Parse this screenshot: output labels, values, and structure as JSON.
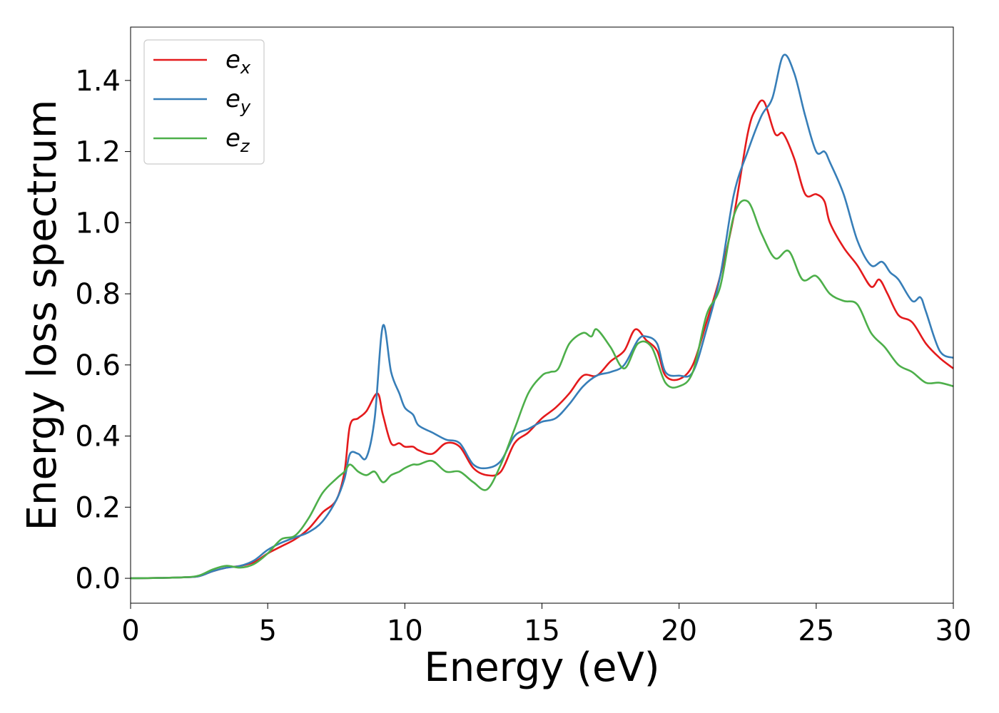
{
  "chart_data": {
    "type": "line",
    "title": "",
    "xlabel": "Energy (eV)",
    "ylabel": "Energy loss spectrum",
    "xlim": [
      0,
      30
    ],
    "ylim": [
      -0.07,
      1.55
    ],
    "xticks": [
      0,
      5,
      10,
      15,
      20,
      25,
      30
    ],
    "xtick_labels": [
      "0",
      "5",
      "10",
      "15",
      "20",
      "25",
      "30"
    ],
    "yticks": [
      0.0,
      0.2,
      0.4,
      0.6,
      0.8,
      1.0,
      1.2,
      1.4
    ],
    "ytick_labels": [
      "0.0",
      "0.2",
      "0.4",
      "0.6",
      "0.8",
      "1.0",
      "1.2",
      "1.4"
    ],
    "grid": false,
    "legend_position": "upper-left",
    "series": [
      {
        "name": "e_x",
        "legend_base": "e",
        "legend_sub": "x",
        "color": "#e41a1c",
        "x": [
          0,
          1,
          2,
          2.5,
          3,
          3.5,
          4,
          4.5,
          5,
          5.5,
          6,
          6.5,
          7,
          7.5,
          7.8,
          8,
          8.3,
          8.6,
          9,
          9.2,
          9.5,
          9.8,
          10,
          10.3,
          10.5,
          11,
          11.5,
          12,
          12.5,
          13,
          13.5,
          14,
          14.5,
          15,
          15.5,
          16,
          16.5,
          17,
          17.5,
          18,
          18.4,
          18.8,
          19.2,
          19.5,
          20,
          20.5,
          21,
          21.5,
          22,
          22.5,
          22.8,
          23.1,
          23.5,
          23.8,
          24.2,
          24.6,
          25,
          25.3,
          25.5,
          26,
          26.5,
          27,
          27.3,
          27.6,
          28,
          28.5,
          29,
          29.5,
          30
        ],
        "y": [
          0,
          0.001,
          0.003,
          0.006,
          0.02,
          0.03,
          0.035,
          0.045,
          0.07,
          0.09,
          0.11,
          0.14,
          0.185,
          0.22,
          0.3,
          0.43,
          0.45,
          0.47,
          0.52,
          0.46,
          0.38,
          0.38,
          0.37,
          0.37,
          0.36,
          0.35,
          0.38,
          0.37,
          0.31,
          0.29,
          0.3,
          0.38,
          0.41,
          0.45,
          0.48,
          0.52,
          0.57,
          0.57,
          0.61,
          0.64,
          0.7,
          0.67,
          0.64,
          0.57,
          0.56,
          0.6,
          0.72,
          0.85,
          1.02,
          1.25,
          1.32,
          1.34,
          1.25,
          1.25,
          1.18,
          1.08,
          1.08,
          1.06,
          1.0,
          0.93,
          0.88,
          0.82,
          0.84,
          0.8,
          0.74,
          0.72,
          0.66,
          0.62,
          0.59
        ]
      },
      {
        "name": "e_y",
        "legend_base": "e",
        "legend_sub": "y",
        "color": "#377eb8",
        "x": [
          0,
          1,
          2,
          2.5,
          3,
          3.5,
          4,
          4.5,
          5,
          5.5,
          6,
          6.5,
          7,
          7.5,
          7.8,
          8,
          8.3,
          8.6,
          8.9,
          9.2,
          9.5,
          9.8,
          10,
          10.3,
          10.5,
          11,
          11.5,
          12,
          12.5,
          13,
          13.5,
          14,
          14.5,
          15,
          15.5,
          16,
          16.5,
          17,
          17.5,
          18,
          18.5,
          18.8,
          19.2,
          19.5,
          20,
          20.5,
          21,
          21.5,
          22,
          22.5,
          23,
          23.4,
          23.8,
          24.2,
          24.6,
          25,
          25.3,
          25.5,
          26,
          26.5,
          27,
          27.4,
          27.7,
          28,
          28.5,
          28.8,
          29,
          29.5,
          30
        ],
        "y": [
          0,
          0.001,
          0.003,
          0.006,
          0.02,
          0.03,
          0.035,
          0.05,
          0.08,
          0.1,
          0.115,
          0.13,
          0.16,
          0.22,
          0.28,
          0.35,
          0.35,
          0.34,
          0.45,
          0.71,
          0.58,
          0.52,
          0.48,
          0.46,
          0.43,
          0.41,
          0.39,
          0.38,
          0.32,
          0.31,
          0.33,
          0.4,
          0.42,
          0.44,
          0.45,
          0.49,
          0.54,
          0.57,
          0.58,
          0.6,
          0.67,
          0.68,
          0.66,
          0.58,
          0.57,
          0.58,
          0.7,
          0.85,
          1.08,
          1.2,
          1.3,
          1.35,
          1.47,
          1.42,
          1.3,
          1.2,
          1.2,
          1.17,
          1.08,
          0.95,
          0.88,
          0.89,
          0.86,
          0.84,
          0.78,
          0.79,
          0.75,
          0.64,
          0.62
        ]
      },
      {
        "name": "e_z",
        "legend_base": "e",
        "legend_sub": "z",
        "color": "#4daf4a",
        "x": [
          0,
          1,
          2,
          2.5,
          3,
          3.5,
          4,
          4.5,
          5,
          5.5,
          6,
          6.5,
          7,
          7.5,
          7.8,
          8,
          8.3,
          8.6,
          8.9,
          9.2,
          9.5,
          9.8,
          10,
          10.3,
          10.5,
          11,
          11.5,
          12,
          12.5,
          13,
          13.5,
          14,
          14.5,
          15,
          15.3,
          15.6,
          16,
          16.5,
          16.8,
          17,
          17.5,
          18,
          18.5,
          19,
          19.5,
          20,
          20.5,
          21,
          21.5,
          22,
          22.5,
          23,
          23.5,
          24,
          24.5,
          25,
          25.5,
          26,
          26.5,
          27,
          27.5,
          28,
          28.5,
          29,
          29.5,
          30
        ],
        "y": [
          0,
          0.001,
          0.003,
          0.008,
          0.025,
          0.035,
          0.03,
          0.04,
          0.07,
          0.11,
          0.12,
          0.17,
          0.24,
          0.28,
          0.3,
          0.32,
          0.3,
          0.29,
          0.3,
          0.27,
          0.29,
          0.3,
          0.31,
          0.32,
          0.32,
          0.33,
          0.3,
          0.3,
          0.27,
          0.25,
          0.32,
          0.42,
          0.52,
          0.57,
          0.58,
          0.59,
          0.66,
          0.69,
          0.68,
          0.7,
          0.65,
          0.59,
          0.66,
          0.65,
          0.55,
          0.54,
          0.58,
          0.74,
          0.82,
          1.02,
          1.06,
          0.97,
          0.9,
          0.92,
          0.84,
          0.85,
          0.8,
          0.78,
          0.77,
          0.69,
          0.65,
          0.6,
          0.58,
          0.55,
          0.55,
          0.54
        ]
      }
    ]
  }
}
